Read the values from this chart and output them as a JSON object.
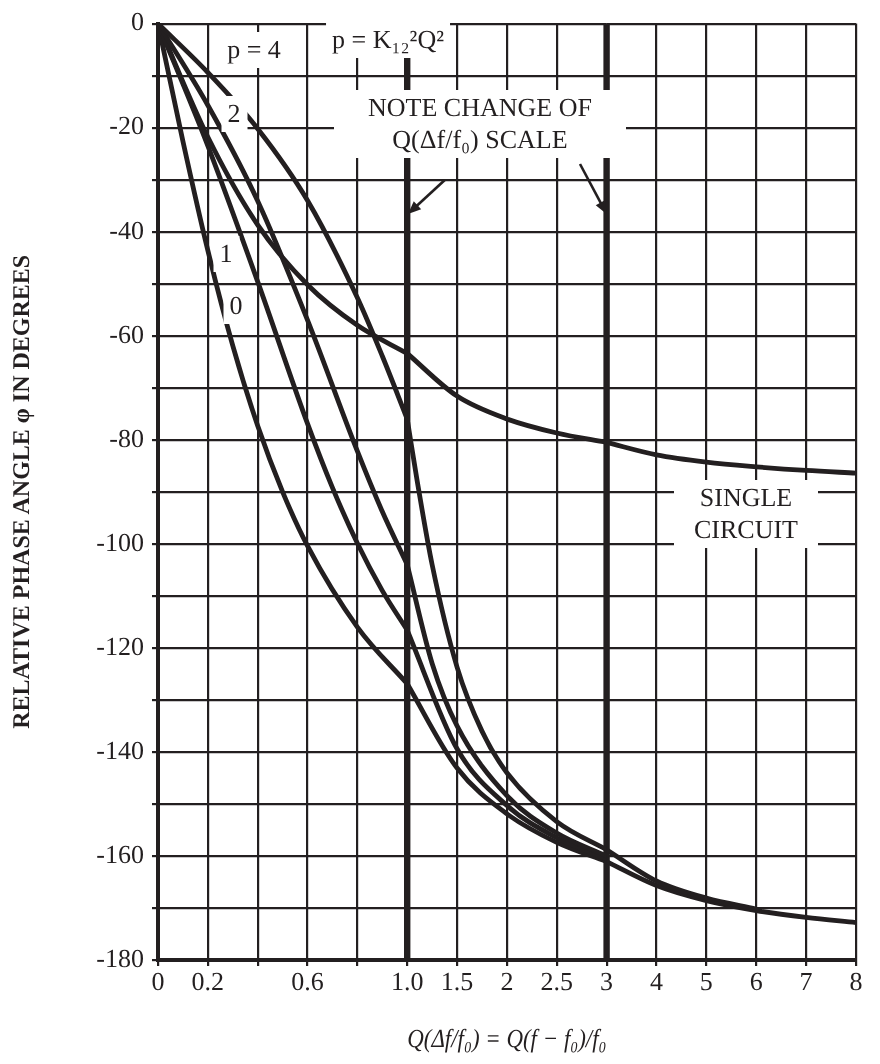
{
  "chart_data": [
    {
      "type": "line",
      "ylabel": "RELATIVE PHASE ANGLE φ IN DEGREES",
      "annotations": [
        "p = K₁₂²Q²"
      ],
      "xlim": [
        0,
        1
      ],
      "xticks": [
        0,
        0.2,
        {
          "value": 0.4,
          "label": null
        },
        0.6,
        {
          "value": 0.8,
          "label": null
        },
        {
          "value": 1,
          "label": "1.0"
        }
      ],
      "ylim": [
        -180,
        0
      ],
      "yticks": [
        0,
        {
          "value": -10,
          "label": null
        },
        -20,
        {
          "value": -30,
          "label": null
        },
        -40,
        {
          "value": -50,
          "label": null
        },
        -60,
        {
          "value": -70,
          "label": null
        },
        -80,
        {
          "value": -90,
          "label": null
        },
        -100,
        {
          "value": -110,
          "label": null
        },
        -120,
        {
          "value": -130,
          "label": null
        },
        -140,
        {
          "value": -150,
          "label": null
        },
        -160,
        {
          "value": -170,
          "label": null
        },
        -180
      ],
      "grid": true,
      "marker": "none",
      "line_style": "solid",
      "ref_lines": [
        {
          "axis": "x",
          "value": 1
        }
      ],
      "series": [
        {
          "name": "p = 4",
          "color": "#231f20",
          "x": [
            0,
            0.2,
            0.4,
            0.6,
            0.8,
            0.9,
            1
          ],
          "values": [
            0,
            -9.4,
            -20.2,
            -34,
            -52.7,
            -63.9,
            -76
          ]
        },
        {
          "name": "2",
          "color": "#231f20",
          "x": [
            0,
            0.2,
            0.4,
            0.6,
            0.8,
            0.9,
            1
          ],
          "values": [
            0,
            -15.7,
            -34.1,
            -57,
            -82.2,
            -93.8,
            -104
          ]
        },
        {
          "name": "1",
          "color": "#231f20",
          "x": [
            0,
            0.2,
            0.4,
            0.6,
            0.7,
            0.8,
            0.9,
            1
          ],
          "values": [
            0,
            -23.5,
            -49.6,
            -76.9,
            -89.2,
            -99.9,
            -109,
            -116.6
          ]
        },
        {
          "name": "0",
          "color": "#231f20",
          "x": [
            0,
            0.1,
            0.2,
            0.3,
            0.4,
            0.5,
            0.6,
            0.8,
            1
          ],
          "values": [
            0,
            -22.6,
            -43.6,
            -61.9,
            -77.3,
            -90,
            -100.4,
            -116,
            -126.9
          ]
        },
        {
          "color": "#231f20",
          "x": [
            0,
            0.2,
            0.4,
            0.6,
            0.8,
            1
          ],
          "values": [
            0,
            -21.8,
            -38.7,
            -50.2,
            -58,
            -63.4
          ]
        }
      ]
    },
    {
      "type": "line",
      "xlabel": "Q(Δf/f₀) = Q(f − f₀)/f₀",
      "annotations": [
        "NOTE CHANGE OF Q(Δf/f₀) SCALE"
      ],
      "xlim": [
        1,
        3
      ],
      "xticks": [
        1.5,
        2,
        2.5,
        3
      ],
      "ylim": [
        -180,
        0
      ],
      "yticks": [
        0,
        -10,
        -20,
        -30,
        -40,
        -50,
        -60,
        -70,
        -80,
        -90,
        -100,
        -110,
        -120,
        -130,
        -140,
        -150,
        -160,
        -170,
        -180
      ],
      "tick_labels": "x",
      "grid": true,
      "marker": "none",
      "line_style": "solid",
      "ref_lines": [
        {
          "axis": "x",
          "value": 3
        }
      ],
      "series": [
        {
          "color": "#231f20",
          "x": [
            1,
            1.1,
            1.25,
            1.5,
            1.75,
            2,
            2.5,
            3
          ],
          "values": [
            -76,
            -87.9,
            -104,
            -123.7,
            -136,
            -144,
            -153.4,
            -158.8
          ]
        },
        {
          "color": "#231f20",
          "x": [
            1,
            1.25,
            1.5,
            2,
            2.5,
            3
          ],
          "values": [
            -104,
            -123,
            -135,
            -148.4,
            -155.6,
            -160
          ]
        },
        {
          "color": "#231f20",
          "x": [
            1,
            1.5,
            2,
            2.5,
            3
          ],
          "values": [
            -116.6,
            -139.4,
            -150.3,
            -156.5,
            -160.6
          ]
        },
        {
          "color": "#231f20",
          "x": [
            1,
            1.5,
            2,
            2.5,
            3
          ],
          "values": [
            -126.9,
            -143.1,
            -151.9,
            -157.4,
            -161.1
          ]
        },
        {
          "color": "#231f20",
          "x": [
            1,
            1.5,
            2,
            2.5,
            3
          ],
          "values": [
            -63.4,
            -71.6,
            -76,
            -78.7,
            -80.5
          ]
        }
      ]
    },
    {
      "type": "line",
      "xlim": [
        3,
        8
      ],
      "xticks": [
        4,
        5,
        6,
        7,
        8
      ],
      "ylim": [
        -180,
        0
      ],
      "yticks": [
        0,
        -10,
        -20,
        -30,
        -40,
        -50,
        -60,
        -70,
        -80,
        -90,
        -100,
        -110,
        -120,
        -130,
        -140,
        -150,
        -160,
        -170,
        -180
      ],
      "tick_labels": "x",
      "grid": true,
      "marker": "none",
      "line_style": "solid",
      "series": [
        {
          "color": "#231f20",
          "x": [
            3,
            4,
            5,
            6
          ],
          "values": [
            -158.8,
            -164.8,
            -168.1,
            -170.2
          ]
        },
        {
          "color": "#231f20",
          "x": [
            3,
            4,
            5,
            6,
            7,
            8
          ],
          "values": [
            -161.1,
            -165.7,
            -168.6,
            -170.5,
            -171.8,
            -172.8
          ]
        },
        {
          "name": "SINGLE CIRCUIT",
          "color": "#231f20",
          "x": [
            3,
            4,
            5,
            6,
            7,
            8
          ],
          "values": [
            -80.5,
            -82.9,
            -84.3,
            -85.2,
            -85.9,
            -86.4
          ]
        }
      ]
    }
  ]
}
